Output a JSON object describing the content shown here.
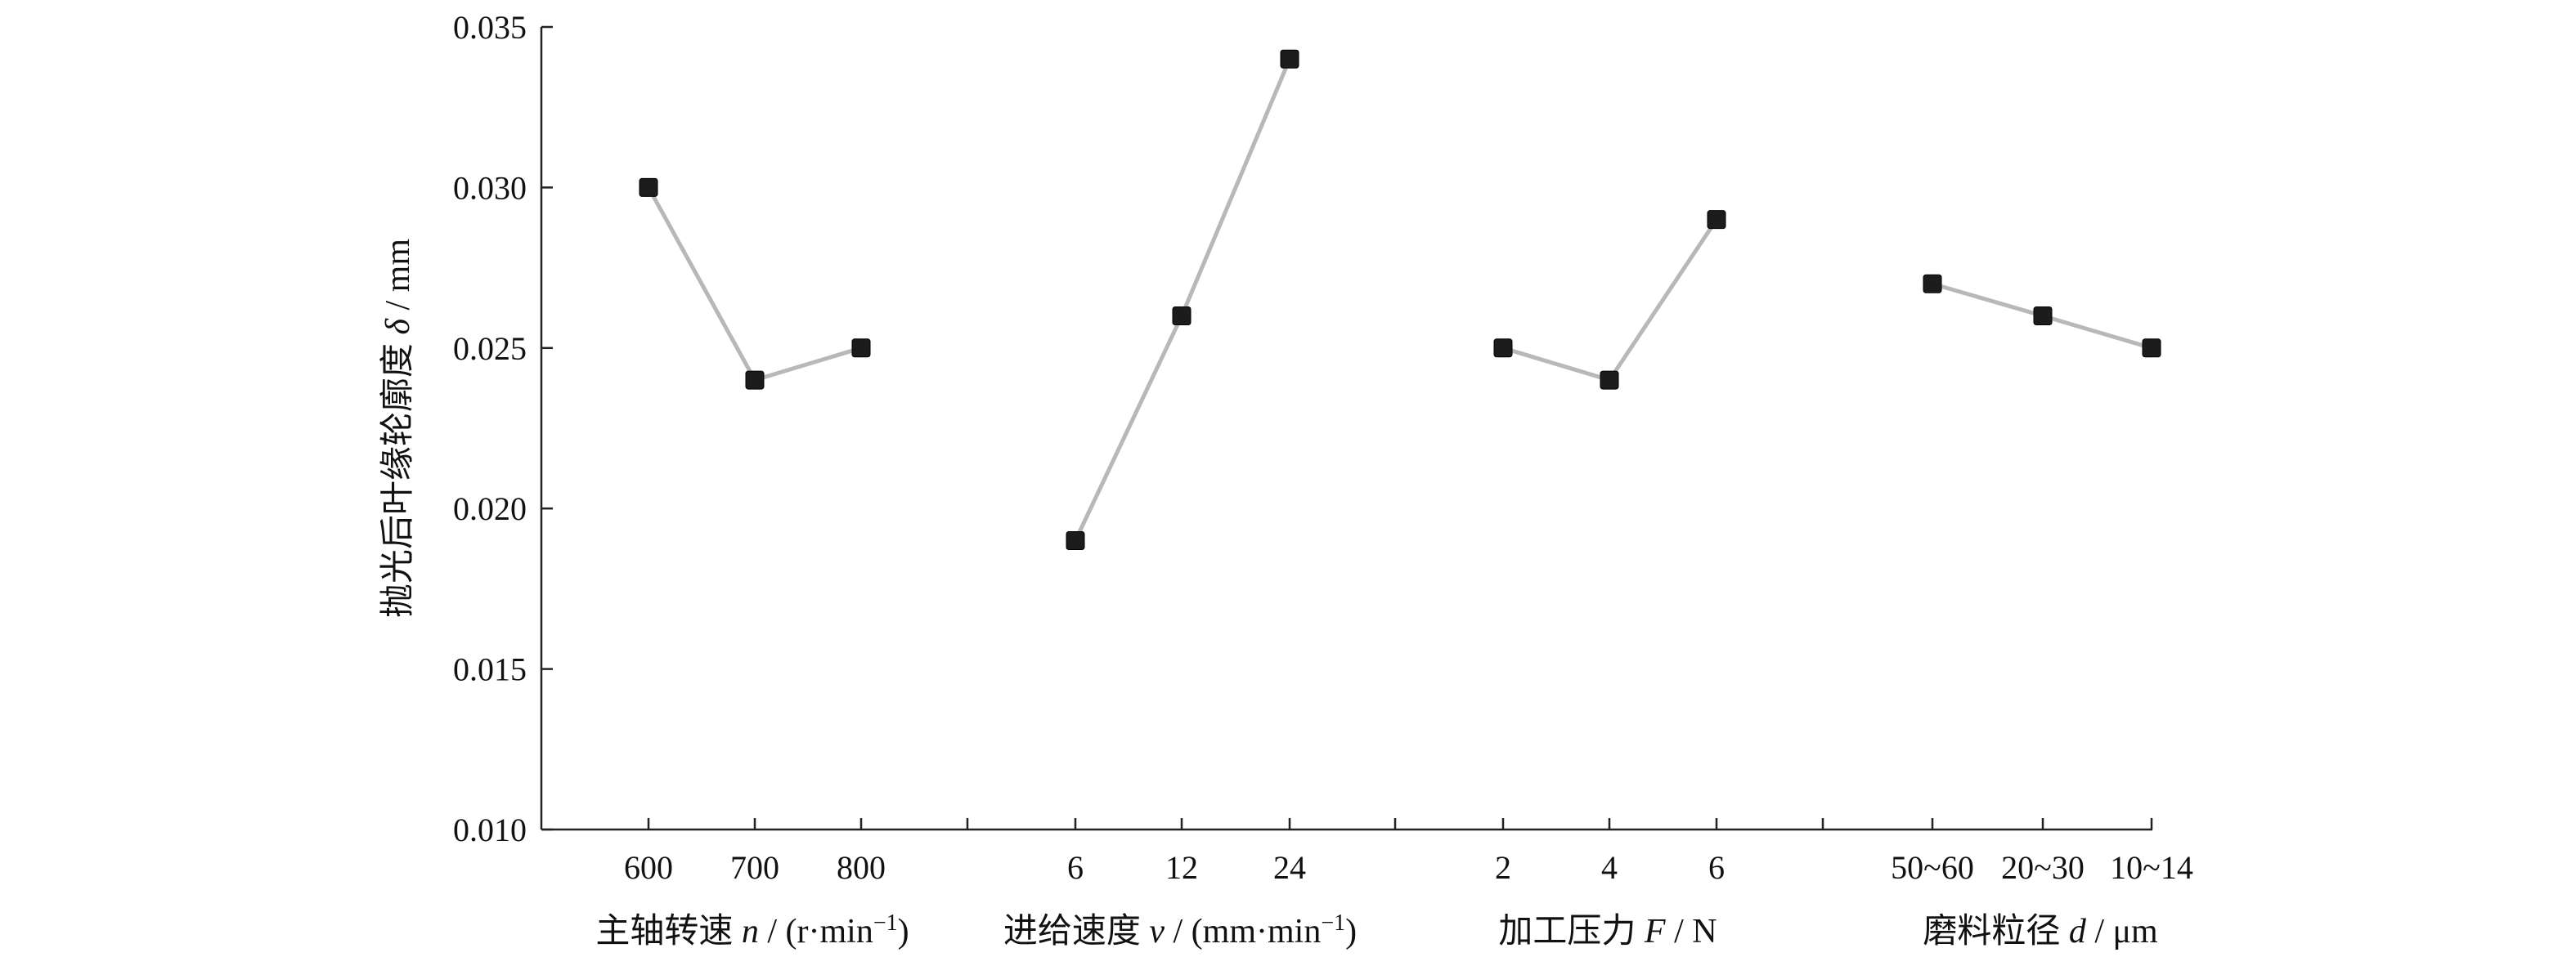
{
  "chart_data": {
    "type": "line",
    "ylabel": {
      "text": "抛光后叶缘轮廓度 ",
      "symbol": "δ",
      "unit": " / mm"
    },
    "ylim": [
      0.01,
      0.035
    ],
    "yticks": [
      "0.010",
      "0.015",
      "0.020",
      "0.025",
      "0.030",
      "0.035"
    ],
    "ytick_values": [
      0.01,
      0.015,
      0.02,
      0.025,
      0.03,
      0.035
    ],
    "grid": false,
    "groups": [
      {
        "xlabel": {
          "text": "主轴转速 ",
          "symbol": "n",
          "unit_prefix": " / (r·min",
          "unit_sup": "−1",
          "unit_suffix": ")"
        },
        "categories": [
          "600",
          "700",
          "800"
        ],
        "values": [
          0.03,
          0.024,
          0.025
        ]
      },
      {
        "xlabel": {
          "text": "进给速度 ",
          "symbol": "v",
          "unit_prefix": " / (mm·min",
          "unit_sup": "−1",
          "unit_suffix": ")"
        },
        "categories": [
          "6",
          "12",
          "24"
        ],
        "values": [
          0.019,
          0.026,
          0.034
        ]
      },
      {
        "xlabel": {
          "text": "加工压力 ",
          "symbol": "F",
          "unit_prefix": " / N",
          "unit_sup": "",
          "unit_suffix": ""
        },
        "categories": [
          "2",
          "4",
          "6"
        ],
        "values": [
          0.025,
          0.024,
          0.029
        ]
      },
      {
        "xlabel": {
          "text": "磨料粒径 ",
          "symbol": "d",
          "unit_prefix": " / μm",
          "unit_sup": "",
          "unit_suffix": ""
        },
        "categories": [
          "50~60",
          "20~30",
          "10~14"
        ],
        "values": [
          0.027,
          0.026,
          0.025
        ]
      }
    ]
  }
}
